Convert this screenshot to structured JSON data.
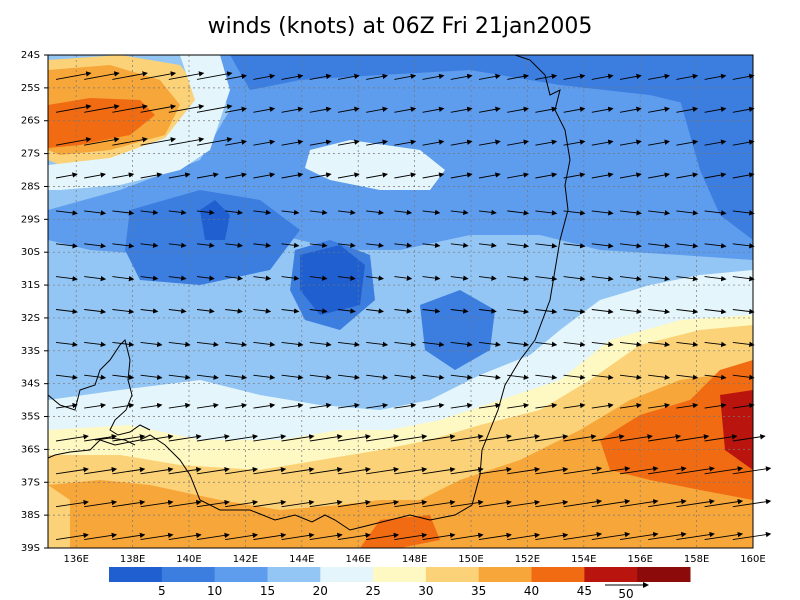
{
  "title": "winds (knots) at 06Z Fri 21jan2005",
  "axes": {
    "lat_labels": [
      "24S",
      "25S",
      "26S",
      "27S",
      "28S",
      "29S",
      "30S",
      "31S",
      "32S",
      "33S",
      "34S",
      "35S",
      "36S",
      "37S",
      "38S",
      "39S"
    ],
    "lon_labels": [
      "136E",
      "138E",
      "140E",
      "142E",
      "144E",
      "146E",
      "148E",
      "150E",
      "152E",
      "154E",
      "156E",
      "158E",
      "160E"
    ]
  },
  "colorbar": {
    "ticks": [
      "5",
      "10",
      "15",
      "20",
      "25",
      "30",
      "35",
      "40",
      "45"
    ],
    "colors": [
      "#1f5fd0",
      "#3c7de0",
      "#5e9ced",
      "#93c6f4",
      "#e4f6fb",
      "#fef8c2",
      "#fbd277",
      "#f7a63a",
      "#f06b12",
      "#b9140e",
      "#8c0a0a"
    ],
    "reference_vector_label": "50"
  },
  "map_colors": {
    "coastline": "#000000",
    "grid": "#666666",
    "arrow": "#000000"
  },
  "chart_data": {
    "type": "heatmap",
    "variable": "wind speed",
    "units": "knots",
    "contour_levels": [
      5,
      10,
      15,
      20,
      25,
      30,
      35,
      40,
      45
    ],
    "x_range": [
      "135E",
      "160E"
    ],
    "y_range": [
      "24S",
      "39S"
    ]
  }
}
